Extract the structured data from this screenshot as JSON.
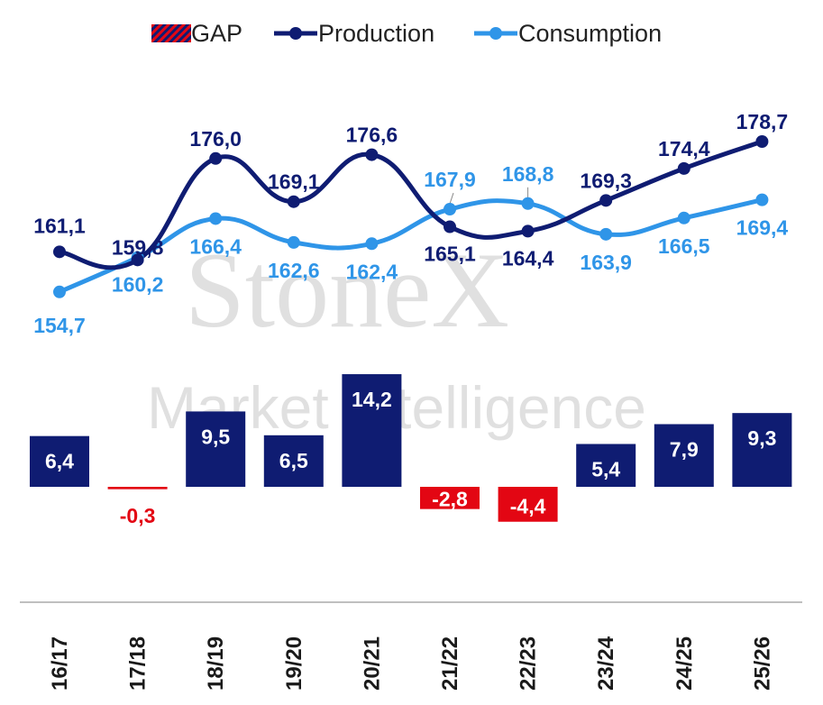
{
  "watermark": {
    "line1": "StoneX",
    "line2": "Market Intelligence"
  },
  "legend": [
    {
      "key": "gap",
      "label": "GAP"
    },
    {
      "key": "production",
      "label": "Production"
    },
    {
      "key": "consumption",
      "label": "Consumption"
    }
  ],
  "colors": {
    "production": "#0f1c72",
    "consumption": "#2f95e8",
    "gap_positive": "#0f1c72",
    "gap_negative": "#e30613",
    "axis": "#bfbfbf"
  },
  "chart_data": {
    "type": "bar+line",
    "categories": [
      "16/17",
      "17/18",
      "18/19",
      "19/20",
      "20/21",
      "21/22",
      "22/23",
      "23/24",
      "24/25",
      "25/26"
    ],
    "series": [
      {
        "name": "GAP",
        "type": "bar",
        "values": [
          6.4,
          -0.3,
          9.5,
          6.5,
          14.2,
          -2.8,
          -4.4,
          5.4,
          7.9,
          9.3
        ],
        "labels": [
          "6,4",
          "-0,3",
          "9,5",
          "6,5",
          "14,2",
          "-2,8",
          "-4,4",
          "5,4",
          "7,9",
          "9,3"
        ]
      },
      {
        "name": "Production",
        "type": "line",
        "values": [
          161.1,
          159.8,
          176.0,
          169.1,
          176.6,
          165.1,
          164.4,
          169.3,
          174.4,
          178.7
        ],
        "labels": [
          "161,1",
          "159,8",
          "176,0",
          "169,1",
          "176,6",
          "165,1",
          "164,4",
          "169,3",
          "174,4",
          "178,7"
        ]
      },
      {
        "name": "Consumption",
        "type": "line",
        "values": [
          154.7,
          160.2,
          166.4,
          162.6,
          162.4,
          167.9,
          168.8,
          163.9,
          166.5,
          169.4
        ],
        "labels": [
          "154,7",
          "160,2",
          "166,4",
          "162,6",
          "162,4",
          "167,9",
          "168,8",
          "163,9",
          "166,5",
          "169,4"
        ]
      }
    ],
    "legend_position": "top-center",
    "grid": false,
    "x_tick_rotation": -90
  }
}
